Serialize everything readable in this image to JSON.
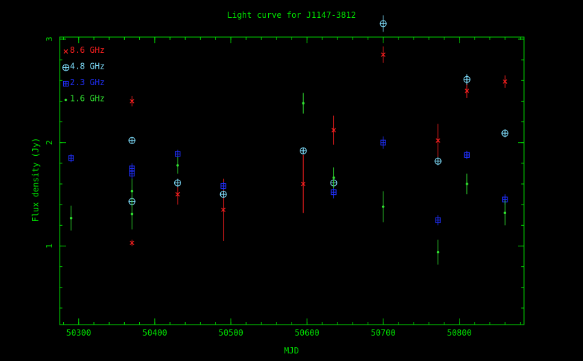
{
  "chart_data": {
    "type": "scatter",
    "title": "Light curve for J1147-3812",
    "xlabel": "MJD",
    "ylabel": "Flux density (Jy)",
    "xlim": [
      50275,
      50885
    ],
    "ylim": [
      0.24,
      3.02
    ],
    "xticks_major": [
      50300,
      50400,
      50500,
      50600,
      50700,
      50800
    ],
    "xticks_minor_step": 20,
    "yticks_major": [
      1,
      2,
      3
    ],
    "yticks_minor_step": 0.2,
    "grid": false,
    "legend_position": "top-left",
    "frame_color": "#00e000",
    "series": [
      {
        "name": "8.6 GHz",
        "color": "#ff2020",
        "marker": "cross",
        "points": [
          {
            "x": 50370,
            "y": 2.4,
            "err": 0.05
          },
          {
            "x": 50370,
            "y": 1.03,
            "err": 0.03
          },
          {
            "x": 50430,
            "y": 1.5,
            "err": 0.1
          },
          {
            "x": 50490,
            "y": 1.35,
            "err": 0.3
          },
          {
            "x": 50595,
            "y": 1.6,
            "err": 0.28
          },
          {
            "x": 50635,
            "y": 2.12,
            "err": 0.14
          },
          {
            "x": 50700,
            "y": 2.85,
            "err": 0.08
          },
          {
            "x": 50772,
            "y": 2.02,
            "err": 0.16
          },
          {
            "x": 50810,
            "y": 2.5,
            "err": 0.07
          },
          {
            "x": 50860,
            "y": 2.59,
            "err": 0.06
          }
        ]
      },
      {
        "name": "4.8 GHz",
        "color": "#80e0ff",
        "marker": "circle-plus",
        "points": [
          {
            "x": 50370,
            "y": 2.02,
            "err": 0.03
          },
          {
            "x": 50370,
            "y": 1.43,
            "err": 0.05
          },
          {
            "x": 50430,
            "y": 1.61,
            "err": 0.04
          },
          {
            "x": 50490,
            "y": 1.5,
            "err": 0.03
          },
          {
            "x": 50595,
            "y": 1.92,
            "err": 0.03
          },
          {
            "x": 50635,
            "y": 1.61,
            "err": 0.04
          },
          {
            "x": 50700,
            "y": 3.15,
            "err": 0.08
          },
          {
            "x": 50772,
            "y": 1.82,
            "err": 0.04
          },
          {
            "x": 50810,
            "y": 2.61,
            "err": 0.05
          },
          {
            "x": 50860,
            "y": 2.09,
            "err": 0.04
          }
        ]
      },
      {
        "name": "2.3 GHz",
        "color": "#2030ff",
        "marker": "square-plus",
        "points": [
          {
            "x": 50290,
            "y": 1.85,
            "err": 0.04
          },
          {
            "x": 50370,
            "y": 1.75,
            "err": 0.05
          },
          {
            "x": 50370,
            "y": 1.7,
            "err": 0.05
          },
          {
            "x": 50430,
            "y": 1.89,
            "err": 0.04
          },
          {
            "x": 50490,
            "y": 1.58,
            "err": 0.04
          },
          {
            "x": 50635,
            "y": 1.52,
            "err": 0.06
          },
          {
            "x": 50700,
            "y": 2.0,
            "err": 0.06
          },
          {
            "x": 50772,
            "y": 1.25,
            "err": 0.05
          },
          {
            "x": 50810,
            "y": 1.88,
            "err": 0.04
          },
          {
            "x": 50860,
            "y": 1.45,
            "err": 0.05
          }
        ]
      },
      {
        "name": "1.6 GHz",
        "color": "#30e030",
        "marker": "dot",
        "points": [
          {
            "x": 50290,
            "y": 1.27,
            "err": 0.12
          },
          {
            "x": 50370,
            "y": 1.53,
            "err": 0.12
          },
          {
            "x": 50370,
            "y": 1.31,
            "err": 0.15
          },
          {
            "x": 50430,
            "y": 1.78,
            "err": 0.08
          },
          {
            "x": 50595,
            "y": 2.38,
            "err": 0.1
          },
          {
            "x": 50635,
            "y": 1.66,
            "err": 0.1
          },
          {
            "x": 50700,
            "y": 1.38,
            "err": 0.15
          },
          {
            "x": 50772,
            "y": 0.94,
            "err": 0.12
          },
          {
            "x": 50810,
            "y": 1.6,
            "err": 0.1
          },
          {
            "x": 50860,
            "y": 1.32,
            "err": 0.12
          }
        ]
      }
    ]
  }
}
